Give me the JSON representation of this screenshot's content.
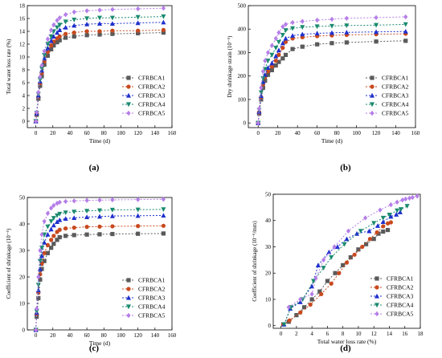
{
  "panels": [
    {
      "id": "a",
      "panel_label": "(a)",
      "chart_data": {
        "type": "line",
        "xlabel": "Time (d)",
        "ylabel": "Total water loss rate (%)",
        "xlim": [
          -10,
          160
        ],
        "ylim": [
          -1,
          18
        ],
        "xticks": [
          0,
          20,
          40,
          60,
          80,
          100,
          120,
          140,
          160
        ],
        "yticks": [
          0,
          2,
          4,
          6,
          8,
          10,
          12,
          14,
          16,
          18
        ],
        "grid": false,
        "legend_position": "bottom-right",
        "x": [
          0,
          1,
          3,
          5,
          7,
          10,
          14,
          18,
          21,
          25,
          28,
          35,
          45,
          60,
          75,
          90,
          120,
          150
        ],
        "series": [
          {
            "name": "CFRBCA1",
            "values": [
              0,
              1.0,
              3.5,
              5.5,
              7.0,
              8.8,
              10.2,
              11.2,
              11.8,
              12.3,
              12.6,
              13.0,
              13.2,
              13.4,
              13.5,
              13.6,
              13.7,
              13.8
            ]
          },
          {
            "name": "CFRBCA2",
            "values": [
              0,
              1.1,
              3.8,
              5.9,
              7.5,
              9.3,
              10.8,
              11.8,
              12.4,
              12.9,
              13.2,
              13.6,
              13.8,
              14.0,
              14.0,
              14.1,
              14.1,
              14.2
            ]
          },
          {
            "name": "CFRBCA3",
            "values": [
              0,
              1.2,
              4.0,
              6.2,
              7.9,
              9.8,
              11.4,
              12.5,
              13.2,
              13.8,
              14.2,
              14.6,
              14.9,
              15.1,
              15.2,
              15.2,
              15.3,
              15.4
            ]
          },
          {
            "name": "CFRBCA4",
            "values": [
              0,
              1.3,
              4.2,
              6.5,
              8.2,
              10.3,
              12.0,
              13.2,
              14.0,
              14.6,
              15.0,
              15.5,
              15.8,
              16.0,
              16.1,
              16.1,
              16.2,
              16.3
            ]
          },
          {
            "name": "CFRBCA5",
            "values": [
              0,
              1.4,
              4.5,
              6.9,
              8.7,
              10.9,
              12.8,
              14.2,
              15.0,
              15.7,
              16.1,
              16.6,
              17.0,
              17.2,
              17.3,
              17.4,
              17.5,
              17.6
            ]
          }
        ]
      }
    },
    {
      "id": "b",
      "panel_label": "(b)",
      "chart_data": {
        "type": "line",
        "xlabel": "Time (d)",
        "ylabel": "Dry shrinkage strain (10⁻⁶)",
        "xlim": [
          -10,
          160
        ],
        "ylim": [
          -20,
          500
        ],
        "xticks": [
          0,
          20,
          40,
          60,
          80,
          100,
          120,
          140,
          160
        ],
        "yticks": [
          0,
          100,
          200,
          300,
          400,
          500
        ],
        "grid": false,
        "legend_position": "bottom-right",
        "x": [
          0,
          1,
          3,
          5,
          7,
          10,
          14,
          18,
          21,
          25,
          28,
          35,
          45,
          60,
          75,
          90,
          120,
          150
        ],
        "series": [
          {
            "name": "CFRBCA1",
            "values": [
              0,
              40,
              100,
              150,
              180,
              205,
              225,
              245,
              260,
              275,
              290,
              315,
              325,
              335,
              340,
              343,
              347,
              350
            ]
          },
          {
            "name": "CFRBCA2",
            "values": [
              0,
              45,
              110,
              165,
              195,
              220,
              240,
              265,
              290,
              320,
              345,
              360,
              365,
              370,
              373,
              375,
              378,
              380
            ]
          },
          {
            "name": "CFRBCA3",
            "values": [
              0,
              48,
              115,
              175,
              205,
              235,
              255,
              285,
              310,
              340,
              360,
              372,
              378,
              382,
              384,
              386,
              388,
              390
            ]
          },
          {
            "name": "CFRBCA4",
            "values": [
              0,
              55,
              130,
              190,
              230,
              265,
              290,
              320,
              345,
              375,
              395,
              403,
              408,
              411,
              413,
              415,
              417,
              420
            ]
          },
          {
            "name": "CFRBCA5",
            "values": [
              0,
              60,
              150,
              220,
              265,
              300,
              330,
              360,
              385,
              410,
              420,
              428,
              433,
              438,
              442,
              446,
              449,
              452
            ]
          }
        ]
      }
    },
    {
      "id": "c",
      "panel_label": "(c)",
      "chart_data": {
        "type": "line",
        "xlabel": "Time (d)",
        "ylabel": "Coefficient of shrinkage (10⁻⁶)",
        "xlim": [
          -10,
          160
        ],
        "ylim": [
          0,
          50
        ],
        "xticks": [
          0,
          20,
          40,
          60,
          80,
          100,
          120,
          140,
          160
        ],
        "yticks": [
          0,
          10,
          20,
          30,
          40,
          50
        ],
        "grid": false,
        "legend_position": "bottom-right",
        "x": [
          0,
          1,
          3,
          5,
          7,
          10,
          14,
          18,
          21,
          25,
          28,
          35,
          45,
          60,
          75,
          90,
          120,
          150
        ],
        "series": [
          {
            "name": "CFRBCA1",
            "values": [
              0,
              5,
              12,
              19,
              23,
              26,
              29,
              31,
              32.5,
              34,
              35,
              35.5,
              35.8,
              36,
              36.1,
              36.2,
              36.3,
              36.4
            ]
          },
          {
            "name": "CFRBCA2",
            "values": [
              0,
              6,
              14,
              21,
              25,
              29,
              32,
              34,
              35.5,
              37,
              37.8,
              38.3,
              38.6,
              38.9,
              39.0,
              39.1,
              39.2,
              39.3
            ]
          },
          {
            "name": "CFRBCA3",
            "values": [
              0,
              6.5,
              15,
              23,
              28,
              33,
              36,
              38,
              39.5,
              40.8,
              41.5,
              42.0,
              42.3,
              42.6,
              42.8,
              43.0,
              43.1,
              43.2
            ]
          },
          {
            "name": "CFRBCA4",
            "values": [
              0,
              7,
              17,
              26,
              31,
              36,
              39,
              41,
              42.2,
              43.2,
              43.8,
              44.3,
              44.6,
              44.9,
              45.1,
              45.3,
              45.4,
              45.5
            ]
          },
          {
            "name": "CFRBCA5",
            "values": [
              0,
              8,
              20,
              30,
              36,
              41,
              44,
              46,
              47,
              47.8,
              48.2,
              48.5,
              48.7,
              48.9,
              49.0,
              49.1,
              49.2,
              49.3
            ]
          }
        ]
      }
    },
    {
      "id": "d",
      "panel_label": "(d)",
      "chart_data": {
        "type": "line",
        "xlabel": "Total water loss rate (%)",
        "ylabel": "Coefficient of shrinkage (10⁻⁶/mm)",
        "xlim": [
          -1,
          18
        ],
        "ylim": [
          -1,
          50
        ],
        "xticks": [
          0,
          2,
          4,
          6,
          8,
          10,
          12,
          14,
          16,
          18
        ],
        "yticks": [
          0,
          10,
          20,
          30,
          40,
          50
        ],
        "grid": false,
        "legend_position": "bottom-right",
        "series": [
          {
            "name": "CFRBCA1",
            "x": [
              0.3,
              1.0,
              2.0,
              3.0,
              4.0,
              5.0,
              6.0,
              7.0,
              8.0,
              9.0,
              10.0,
              11.0,
              12.0,
              12.6,
              13.2,
              13.8
            ],
            "values": [
              0.5,
              1.5,
              4,
              7,
              10,
              13,
              17,
              20,
              23,
              26,
              29,
              31,
              33,
              35,
              35.8,
              36.4
            ]
          },
          {
            "name": "CFRBCA2",
            "x": [
              0.3,
              1.1,
              2.5,
              3.8,
              5.2,
              6.5,
              7.5,
              8.5,
              9.5,
              10.5,
              11.5,
              12.4,
              13.2,
              13.8,
              14.2
            ],
            "values": [
              0.5,
              2,
              5,
              8,
              12,
              16,
              20,
              24,
              27,
              30,
              33,
              35.5,
              37.8,
              38.9,
              39.3
            ]
          },
          {
            "name": "CFRBCA3",
            "x": [
              0.4,
              1.2,
              2.5,
              4.0,
              4.8,
              6.2,
              7.3,
              8.5,
              9.8,
              11.4,
              12.5,
              13.2,
              14.2,
              14.9,
              15.4
            ],
            "values": [
              0.5,
              6.5,
              9,
              15,
              23,
              28,
              30,
              33,
              35,
              36,
              38,
              39.5,
              41.5,
              42.3,
              43.2
            ]
          },
          {
            "name": "CFRBCA4",
            "x": [
              0.4,
              1.3,
              2.8,
              4.2,
              5.5,
              6.5,
              8.2,
              10.3,
              12.0,
              13.2,
              14.0,
              15.0,
              15.5,
              16.3
            ],
            "values": [
              0.5,
              7,
              10,
              17,
              22,
              26,
              31,
              36,
              39,
              41,
              42.2,
              43.8,
              44.3,
              45.5
            ]
          },
          {
            "name": "CFRBCA5",
            "x": [
              1.0,
              2.5,
              4.0,
              4.5,
              5.5,
              6.9,
              8.7,
              10.9,
              12.8,
              14.2,
              15.0,
              15.7,
              16.1,
              16.6,
              17.0,
              17.6
            ],
            "values": [
              7,
              10,
              12,
              18,
              25,
              30,
              36,
              41,
              44,
              46,
              47,
              47.8,
              48.2,
              48.5,
              48.8,
              49.3
            ]
          }
        ]
      }
    }
  ],
  "series_styles": [
    {
      "color": "#5a5a5a",
      "marker": "square",
      "dash": "2,2"
    },
    {
      "color": "#c8491e",
      "marker": "circle",
      "dash": "2,2"
    },
    {
      "color": "#1f2fcc",
      "marker": "triangle-up",
      "dash": "2,2"
    },
    {
      "color": "#1a8a6e",
      "marker": "triangle-down",
      "dash": "2,2"
    },
    {
      "color": "#b57ee8",
      "marker": "diamond",
      "dash": "2,2"
    }
  ]
}
